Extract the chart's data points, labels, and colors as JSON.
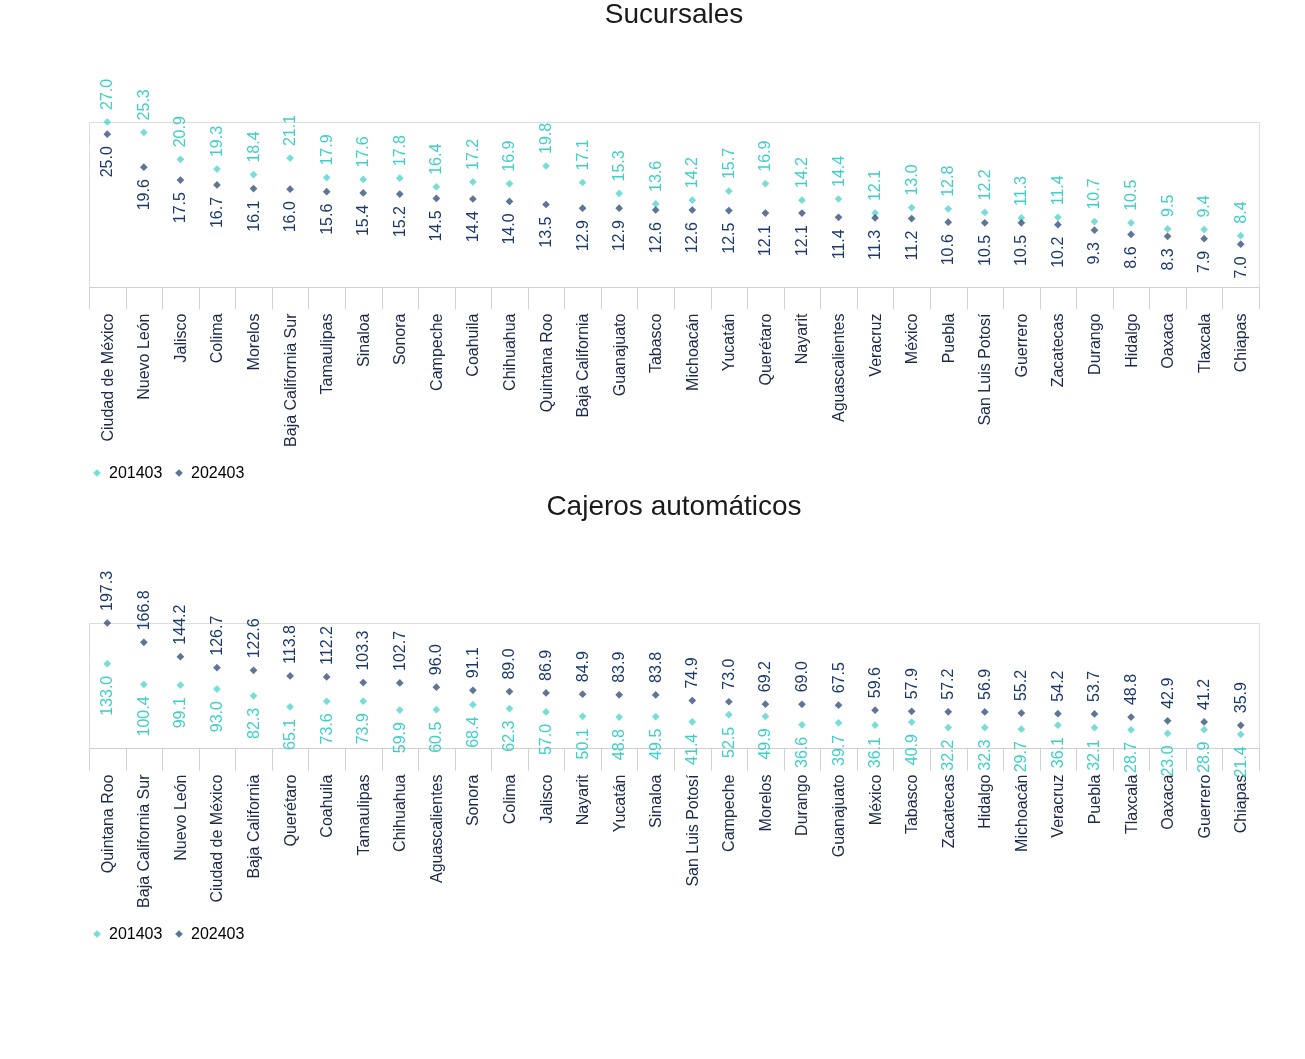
{
  "chart_data": [
    {
      "type": "scatter",
      "title": "Sucursales",
      "marker": "diamond",
      "grid": false,
      "tick_labels": "x",
      "legend": "bottom left",
      "categories": [
        "Ciudad de México",
        "Nuevo León",
        "Jalisco",
        "Colima",
        "Morelos",
        "Baja California Sur",
        "Tamaulipas",
        "Sinaloa",
        "Sonora",
        "Campeche",
        "Coahuila",
        "Chihuahua",
        "Quintana Roo",
        "Baja California",
        "Guanajuato",
        "Tabasco",
        "Michoacán",
        "Yucatán",
        "Querétaro",
        "Nayarit",
        "Aguascalientes",
        "Veracruz",
        "México",
        "Puebla",
        "San Luis Potosí",
        "Guerrero",
        "Zacatecas",
        "Durango",
        "Hidalgo",
        "Oaxaca",
        "Tlaxcala",
        "Chiapas"
      ],
      "series": [
        {
          "name": "201403",
          "color": "#3fcfc8",
          "values": [
            27.0,
            25.3,
            20.9,
            19.3,
            18.4,
            21.1,
            17.9,
            17.6,
            17.8,
            16.4,
            17.2,
            16.9,
            19.8,
            17.1,
            15.3,
            13.6,
            14.2,
            15.7,
            16.9,
            14.2,
            14.4,
            12.1,
            13.0,
            12.8,
            12.2,
            11.3,
            11.4,
            10.7,
            10.5,
            9.5,
            9.4,
            8.4
          ],
          "value_labels": [
            "27.0",
            "25.3",
            "20.9",
            "19.3",
            "18.4",
            "21.1",
            "17.9",
            "17.6",
            "17.8",
            "16.4",
            "17.2",
            "16.9",
            "19.8",
            "17.1",
            "15.3",
            "13.6",
            "14.2",
            "15.7",
            "16.9",
            "14.2",
            "14.4",
            "12.1",
            "13.0",
            "12.8",
            "12.2",
            "11.3",
            "11.4",
            "10.7",
            "10.5",
            "9.5",
            "9.4",
            "8.4"
          ]
        },
        {
          "name": "202403",
          "color": "#1b3a6b",
          "values": [
            25.0,
            19.6,
            17.5,
            16.7,
            16.1,
            16.0,
            15.6,
            15.4,
            15.2,
            14.5,
            14.4,
            14.0,
            13.5,
            12.9,
            12.9,
            12.6,
            12.6,
            12.5,
            12.1,
            12.1,
            11.4,
            11.3,
            11.2,
            10.6,
            10.5,
            10.5,
            10.2,
            9.3,
            8.6,
            8.3,
            7.9,
            7.0
          ],
          "value_labels": [
            "25.0",
            "19.6",
            "17.5",
            "16.7",
            "16.1",
            "16.0",
            "15.6",
            "15.4",
            "15.2",
            "14.5",
            "14.4",
            "14.0",
            "13.5",
            "12.9",
            "12.9",
            "12.6",
            "12.6",
            "12.5",
            "12.1",
            "12.1",
            "11.4",
            "11.3",
            "11.2",
            "10.6",
            "10.5",
            "10.5",
            "10.2",
            "9.3",
            "8.6",
            "8.3",
            "7.9",
            "7.0"
          ]
        }
      ]
    },
    {
      "type": "scatter",
      "title": "Cajeros automáticos",
      "marker": "diamond",
      "grid": false,
      "tick_labels": "x",
      "legend": "bottom left",
      "categories": [
        "Quintana Roo",
        "Baja California Sur",
        "Nuevo León",
        "Ciudad de México",
        "Baja California",
        "Querétaro",
        "Coahuila",
        "Tamaulipas",
        "Chihuahua",
        "Aguascalientes",
        "Sonora",
        "Colima",
        "Jalisco",
        "Nayarit",
        "Yucatán",
        "Sinaloa",
        "San Luis Potosí",
        "Campeche",
        "Morelos",
        "Durango",
        "Guanajuato",
        "México",
        "Tabasco",
        "Zacatecas",
        "Hidalgo",
        "Michoacán",
        "Veracruz",
        "Puebla",
        "Tlaxcala",
        "Oaxaca",
        "Guerrero",
        "Chiapas"
      ],
      "series": [
        {
          "name": "201403",
          "color": "#3fcfc8",
          "values": [
            133.0,
            100.4,
            99.1,
            93.0,
            82.3,
            65.1,
            73.6,
            73.9,
            59.9,
            60.5,
            68.4,
            62.3,
            57.0,
            50.1,
            48.8,
            49.5,
            41.4,
            52.5,
            49.9,
            36.6,
            39.7,
            36.1,
            40.9,
            32.2,
            32.3,
            29.7,
            36.1,
            32.1,
            28.7,
            23.0,
            28.9,
            21.4
          ],
          "value_labels": [
            "133.0",
            "100.4",
            "99.1",
            "93.0",
            "82.3",
            "65.1",
            "73.6",
            "73.9",
            "59.9",
            "60.5",
            "68.4",
            "62.3",
            "57.0",
            "50.1",
            "48.8",
            "49.5",
            "41.4",
            "52.5",
            "49.9",
            "36.6",
            "39.7",
            "36.1",
            "40.9",
            "32.2",
            "32.3",
            "29.7",
            "36.1",
            "32.1",
            "28.7",
            "23.0",
            "28.9",
            "21.4"
          ]
        },
        {
          "name": "202403",
          "color": "#1b3a6b",
          "values": [
            197.3,
            166.8,
            144.2,
            126.7,
            122.6,
            113.8,
            112.2,
            103.3,
            102.7,
            96.0,
            91.1,
            89.0,
            86.9,
            84.9,
            83.9,
            83.8,
            74.9,
            73.0,
            69.2,
            69.0,
            67.5,
            59.6,
            57.9,
            57.2,
            56.9,
            55.2,
            54.2,
            53.7,
            48.8,
            42.9,
            41.2,
            35.9
          ],
          "value_labels": [
            "197.3",
            "166.8",
            "144.2",
            "126.7",
            "122.6",
            "113.8",
            "112.2",
            "103.3",
            "102.7",
            "96.0",
            "91.1",
            "89.0",
            "86.9",
            "84.9",
            "83.9",
            "83.8",
            "74.9",
            "73.0",
            "69.2",
            "69.0",
            "67.5",
            "59.6",
            "57.9",
            "57.2",
            "56.9",
            "55.2",
            "54.2",
            "53.7",
            "48.8",
            "42.9",
            "41.2",
            "35.9"
          ]
        }
      ]
    }
  ]
}
